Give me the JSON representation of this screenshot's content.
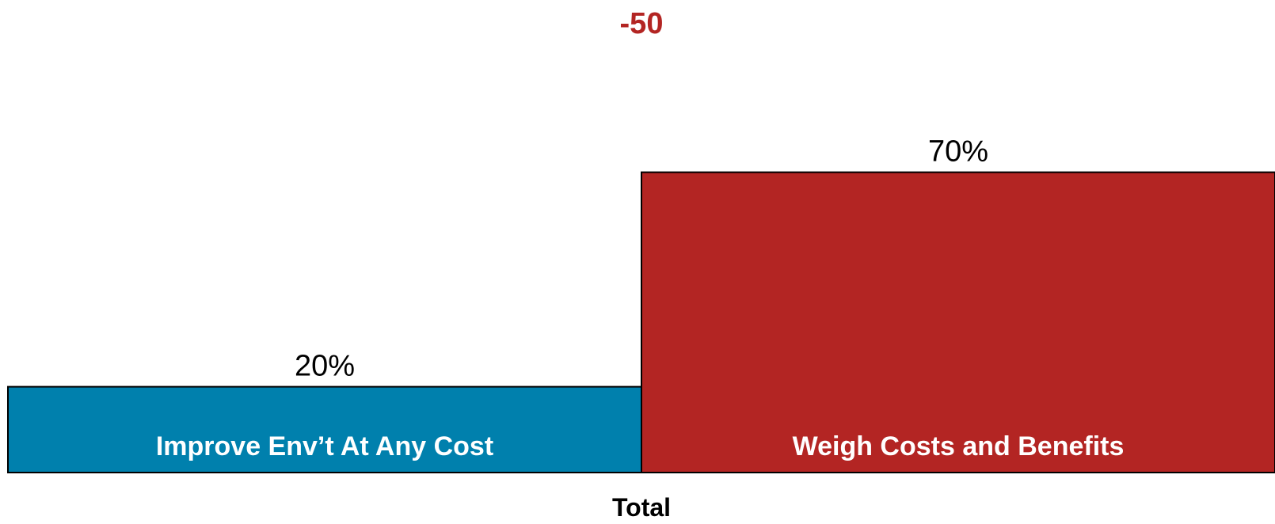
{
  "chart_data": {
    "type": "bar",
    "chart_style": "stacked horizontal mekko-like (single total column split into two segments)",
    "category_axis_label": "Total",
    "difference_label": "-50",
    "segments": [
      {
        "label": "Improve Env’t At Any Cost",
        "value": 20,
        "value_label": "20%",
        "color": "#0080AD"
      },
      {
        "label": "Weigh Costs and Benefits",
        "value": 70,
        "value_label": "70%",
        "color": "#B32523"
      }
    ],
    "ylim": [
      0,
      100
    ],
    "grid": false,
    "legend": "none",
    "colors": {
      "difference_label": "#B32523",
      "segment_text": "#FFFFFF",
      "value_text": "#000000",
      "outline": "#000000"
    }
  }
}
